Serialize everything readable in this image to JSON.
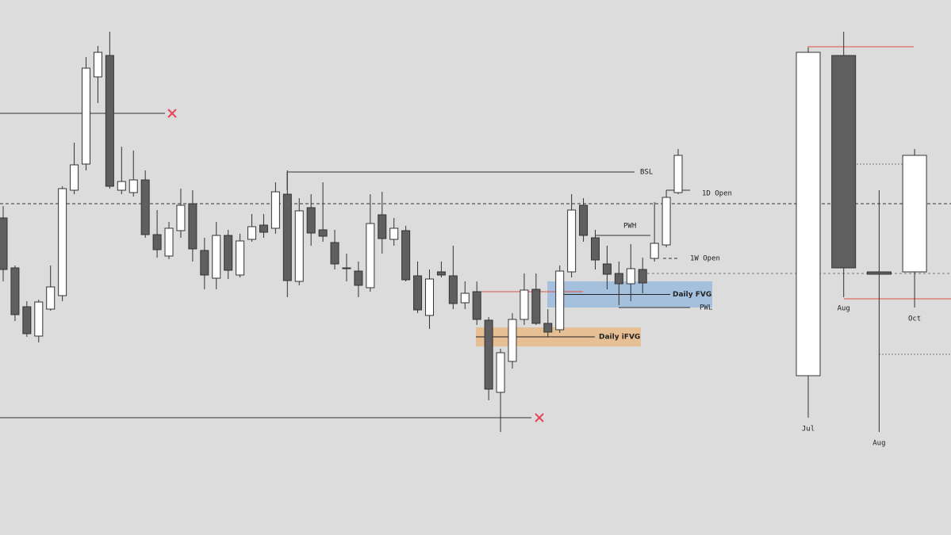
{
  "chart_data": [
    {
      "type": "candlestick",
      "ylim": [
        0,
        675
      ],
      "open": [
        400,
        337,
        288,
        251,
        285,
        302,
        435,
        468,
        578,
        605,
        435,
        432,
        448,
        379,
        352,
        384,
        418,
        359,
        324,
        378,
        328,
        373,
        391,
        387,
        430,
        320,
        413,
        385,
        369,
        337,
        333,
        312,
        404,
        373,
        384,
        327,
        277,
        332,
        327,
        293,
        307,
        271,
        180,
        219,
        272,
        310,
        267,
        259,
        332,
        416,
        375,
        342,
        330,
        317,
        335,
        349,
        366,
        432
      ],
      "high": [
        415,
        340,
        295,
        297,
        340,
        440,
        495,
        603,
        617,
        635,
        490,
        485,
        460,
        410,
        395,
        437,
        435,
        375,
        395,
        385,
        380,
        405,
        405,
        445,
        460,
        425,
        430,
        445,
        385,
        355,
        345,
        430,
        433,
        400,
        390,
        345,
        335,
        345,
        365,
        320,
        320,
        275,
        235,
        280,
        330,
        330,
        285,
        340,
        430,
        425,
        385,
        365,
        345,
        367,
        350,
        420,
        435,
        487
      ],
      "low": [
        320,
        270,
        250,
        243,
        283,
        295,
        430,
        460,
        545,
        437,
        430,
        427,
        375,
        350,
        348,
        375,
        345,
        310,
        310,
        323,
        325,
        370,
        375,
        380,
        300,
        315,
        365,
        370,
        335,
        320,
        300,
        307,
        355,
        365,
        320,
        280,
        260,
        325,
        285,
        285,
        265,
        170,
        130,
        210,
        265,
        265,
        250,
        255,
        325,
        370,
        335,
        310,
        290,
        295,
        305,
        345,
        363,
        430
      ],
      "close": [
        335,
        278,
        254,
        294,
        313,
        437,
        467,
        589,
        609,
        440,
        446,
        448,
        379,
        360,
        387,
        416,
        361,
        328,
        378,
        334,
        371,
        389,
        382,
        433,
        321,
        409,
        381,
        377,
        342,
        336,
        315,
        393,
        374,
        387,
        322,
        284,
        323,
        328,
        292,
        305,
        272,
        184,
        230,
        272,
        309,
        267,
        256,
        333,
        410,
        378,
        347,
        329,
        317,
        336,
        318,
        368,
        426,
        479
      ],
      "annotations": [
        {
          "text": "BSL",
          "value": 458
        },
        {
          "text": "1D Open",
          "value": 435
        },
        {
          "text": "PWH",
          "value": 378
        },
        {
          "text": "1W Open",
          "value": 349
        },
        {
          "text": "PWL",
          "value": 287
        }
      ],
      "zones": [
        {
          "text": "Daily FVG",
          "range": [
            287,
            320
          ]
        },
        {
          "text": "Daily iFVG",
          "range": [
            238,
            262
          ]
        }
      ],
      "lines": [
        418,
        330,
        532,
        148
      ]
    },
    {
      "type": "candlestick",
      "categories": [
        "Jul",
        "Aug",
        "Aug",
        "Oct"
      ],
      "ylim": [
        0,
        675
      ],
      "open": [
        201,
        605,
        332,
        332
      ],
      "high": [
        615,
        635,
        435,
        487
      ],
      "low": [
        148,
        300,
        130,
        287
      ],
      "close": [
        609,
        337,
        329,
        479
      ],
      "lines": [
        616,
        298,
        468,
        228
      ]
    }
  ]
}
